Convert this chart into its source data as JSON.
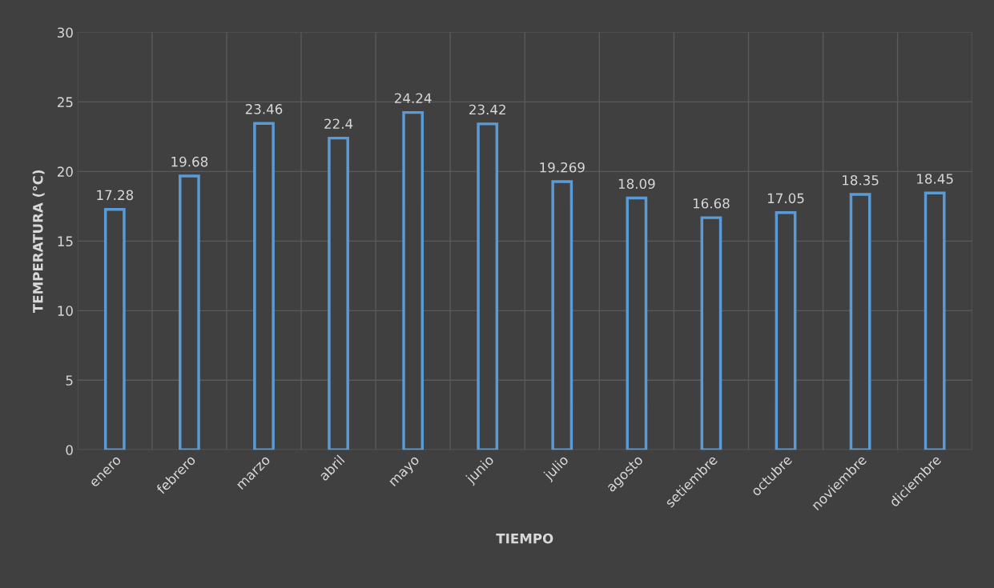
{
  "chart_data": {
    "type": "bar",
    "categories": [
      "enero",
      "febrero",
      "marzo",
      "abril",
      "mayo",
      "junio",
      "julio",
      "agosto",
      "setiembre",
      "octubre",
      "noviembre",
      "diciembre"
    ],
    "values": [
      17.28,
      19.68,
      23.46,
      22.4,
      24.24,
      23.42,
      19.269,
      18.09,
      16.68,
      17.05,
      18.35,
      18.45
    ],
    "color": "#5b9bd5",
    "xlabel": "TIEMPO",
    "ylabel": "TEMPERATURA (°C)",
    "ylim": [
      0,
      30
    ],
    "yticks": [
      0,
      5,
      10,
      15,
      20,
      25,
      30
    ],
    "grid": true,
    "data_labels": true
  }
}
